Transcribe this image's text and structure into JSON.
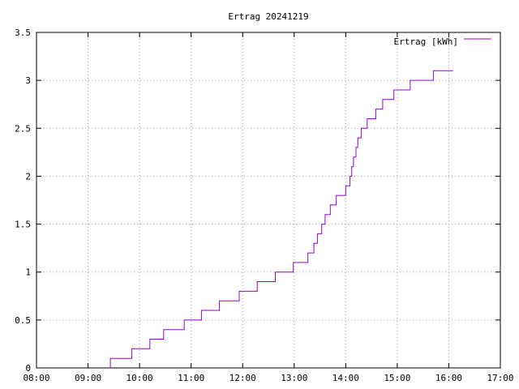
{
  "chart_data": {
    "type": "line",
    "title": "Ertrag 20241219",
    "xlabel": "",
    "ylabel": "",
    "grid": true,
    "legend_position": "top-right",
    "xlim": [
      "08:00",
      "17:00"
    ],
    "ylim": [
      0,
      3.5
    ],
    "x_ticks": [
      "08:00",
      "09:00",
      "10:00",
      "11:00",
      "12:00",
      "13:00",
      "14:00",
      "15:00",
      "16:00",
      "17:00"
    ],
    "y_ticks": [
      "0",
      "0.5",
      "1",
      "1.5",
      "2",
      "2.5",
      "3",
      "3.5"
    ],
    "series": [
      {
        "name": "Ertrag [kWh]",
        "color": "#9400d3",
        "step": true,
        "points": [
          [
            "09:25",
            0.0
          ],
          [
            "09:26",
            0.1
          ],
          [
            "09:51",
            0.2
          ],
          [
            "10:12",
            0.3
          ],
          [
            "10:28",
            0.4
          ],
          [
            "10:52",
            0.5
          ],
          [
            "11:12",
            0.6
          ],
          [
            "11:33",
            0.7
          ],
          [
            "11:56",
            0.8
          ],
          [
            "12:17",
            0.9
          ],
          [
            "12:38",
            1.0
          ],
          [
            "12:59",
            1.1
          ],
          [
            "13:16",
            1.2
          ],
          [
            "13:23",
            1.3
          ],
          [
            "13:27",
            1.4
          ],
          [
            "13:32",
            1.5
          ],
          [
            "13:36",
            1.6
          ],
          [
            "13:42",
            1.7
          ],
          [
            "13:49",
            1.8
          ],
          [
            "14:00",
            1.9
          ],
          [
            "14:05",
            2.0
          ],
          [
            "14:07",
            2.1
          ],
          [
            "14:09",
            2.2
          ],
          [
            "14:12",
            2.3
          ],
          [
            "14:14",
            2.4
          ],
          [
            "14:18",
            2.5
          ],
          [
            "14:25",
            2.6
          ],
          [
            "14:35",
            2.7
          ],
          [
            "14:43",
            2.8
          ],
          [
            "14:56",
            2.9
          ],
          [
            "15:15",
            3.0
          ],
          [
            "15:42",
            3.1
          ],
          [
            "16:05",
            3.1
          ]
        ]
      }
    ]
  }
}
